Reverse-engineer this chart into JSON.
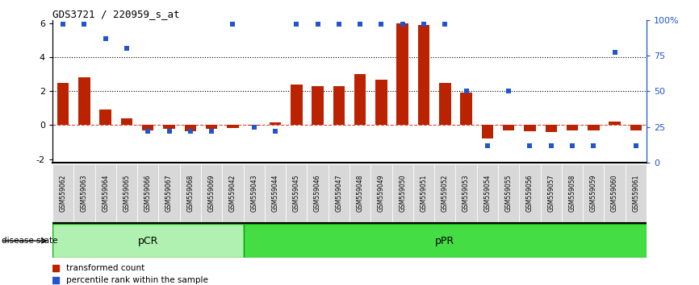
{
  "title": "GDS3721 / 220959_s_at",
  "samples": [
    "GSM559062",
    "GSM559063",
    "GSM559064",
    "GSM559065",
    "GSM559066",
    "GSM559067",
    "GSM559068",
    "GSM559069",
    "GSM559042",
    "GSM559043",
    "GSM559044",
    "GSM559045",
    "GSM559046",
    "GSM559047",
    "GSM559048",
    "GSM559049",
    "GSM559050",
    "GSM559051",
    "GSM559052",
    "GSM559053",
    "GSM559054",
    "GSM559055",
    "GSM559056",
    "GSM559057",
    "GSM559058",
    "GSM559059",
    "GSM559060",
    "GSM559061"
  ],
  "transformed_count": [
    2.5,
    2.8,
    0.9,
    0.4,
    -0.3,
    -0.2,
    -0.35,
    -0.2,
    -0.15,
    -0.05,
    0.15,
    2.4,
    2.3,
    2.3,
    3.0,
    2.7,
    6.0,
    5.9,
    2.5,
    1.9,
    -0.8,
    -0.3,
    -0.35,
    -0.4,
    -0.3,
    -0.3,
    0.2,
    -0.3
  ],
  "percentile_rank": [
    97,
    97,
    87,
    80,
    22,
    22,
    22,
    22,
    97,
    25,
    22,
    97,
    97,
    97,
    97,
    97,
    97,
    97,
    97,
    50,
    12,
    50,
    12,
    12,
    12,
    12,
    77,
    12
  ],
  "pCR_count": 9,
  "pPR_count": 19,
  "bar_color": "#bb2200",
  "dot_color": "#2255cc",
  "pCR_color": "#b0f0b0",
  "pPR_color": "#44dd44",
  "ylim": [
    -2.2,
    6.2
  ],
  "y2lim": [
    0,
    100
  ],
  "yticks": [
    -2,
    0,
    2,
    4,
    6
  ],
  "y2ticks": [
    0,
    25,
    50,
    75,
    100
  ],
  "y2ticklabels": [
    "0",
    "25",
    "50",
    "75",
    "100%"
  ],
  "dotted_lines": [
    2.0,
    4.0
  ],
  "legend_items": [
    "transformed count",
    "percentile rank within the sample"
  ]
}
